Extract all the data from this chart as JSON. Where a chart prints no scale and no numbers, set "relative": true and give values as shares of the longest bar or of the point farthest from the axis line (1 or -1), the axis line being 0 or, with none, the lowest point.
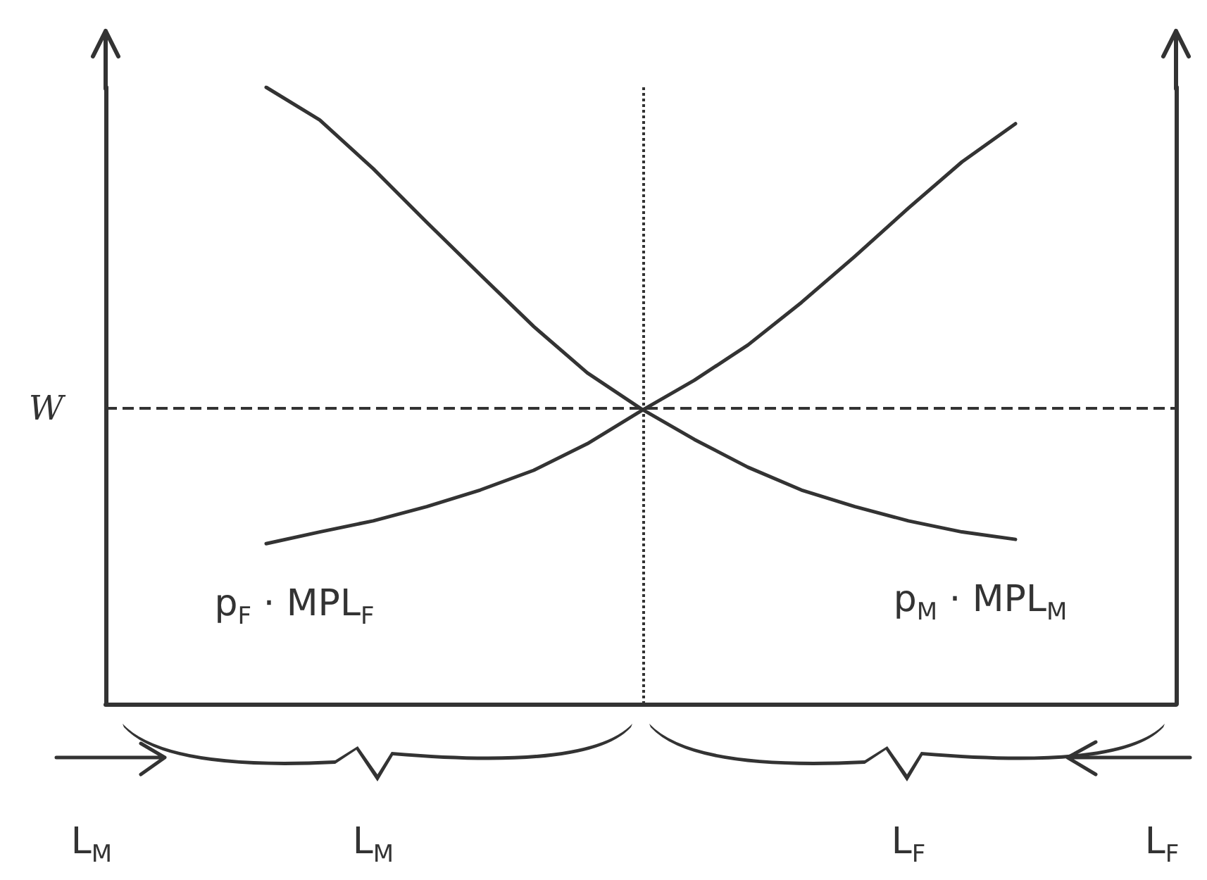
{
  "chart_data": {
    "type": "line",
    "relative": true,
    "grid": false,
    "legend": false,
    "marker": "none",
    "categories": [
      null,
      null,
      null,
      null,
      null,
      null,
      null,
      null,
      null,
      null,
      null,
      null,
      null,
      null,
      null,
      null,
      null,
      null,
      null,
      null,
      null
    ],
    "series": [
      {
        "name": "p$_{F}$ · MPL$_{F}$",
        "color": "#333333",
        "values": [
          null,
          null,
          null,
          0.26,
          0.279,
          0.297,
          0.32,
          0.347,
          0.379,
          0.422,
          0.475,
          0.525,
          0.582,
          0.651,
          0.726,
          0.804,
          0.879,
          0.941,
          null,
          null,
          null
        ]
      },
      {
        "name": "p$_{M}$ · MPL$_{M}$",
        "color": "#333333",
        "values": [
          null,
          null,
          null,
          1,
          0.947,
          0.868,
          0.781,
          0.696,
          0.612,
          0.537,
          0.479,
          0.429,
          0.384,
          0.347,
          0.32,
          0.297,
          0.279,
          0.267,
          null,
          null,
          null
        ]
      }
    ],
    "ref_lines": [
      {
        "axis": "y",
        "value": 0.477,
        "label": "W",
        "line_style": "dashed",
        "color": "#333333"
      },
      {
        "axis": "x",
        "label": null,
        "line_style": "dotted",
        "color": "#333333"
      }
    ],
    "annotations": [
      "L$_{M}$",
      "L$_{M}$",
      "L$_{F}$",
      "L$_{F}$"
    ]
  }
}
